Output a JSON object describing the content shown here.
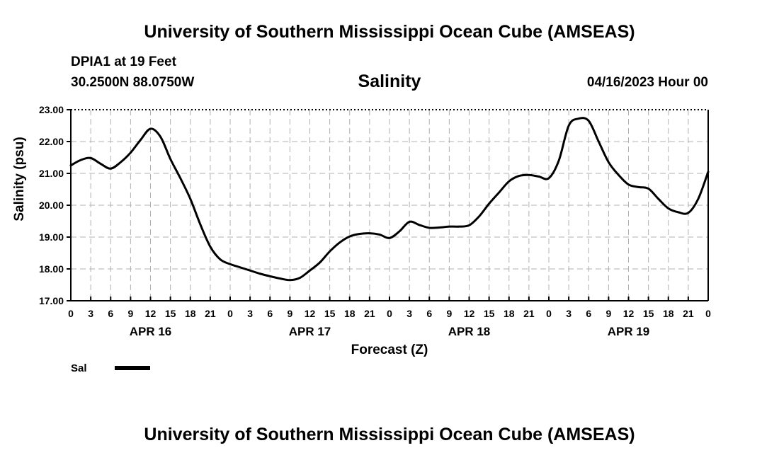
{
  "header": {
    "title": "University of Southern Mississippi Ocean Cube (AMSEAS)",
    "station": "DPIA1 at 19 Feet",
    "coordinates": "30.2500N  88.0750W",
    "datetime": "04/16/2023 Hour 00"
  },
  "footer": {
    "title": "University of Southern Mississippi Ocean Cube (AMSEAS)"
  },
  "colors": {
    "series": "#000000",
    "grid": "#b0b0b0",
    "axis": "#000000"
  },
  "chart_data": {
    "type": "line",
    "title": "Salinity",
    "xlabel": "Forecast (Z)",
    "ylabel": "Salinity (psu)",
    "xlim": [
      0,
      96
    ],
    "ylim": [
      17.0,
      23.0
    ],
    "yticks": [
      17.0,
      18.0,
      19.0,
      20.0,
      21.0,
      22.0,
      23.0
    ],
    "ytick_labels": [
      "17.00",
      "18.00",
      "19.00",
      "20.00",
      "21.00",
      "22.00",
      "23.00"
    ],
    "xticks": [
      0,
      3,
      6,
      9,
      12,
      15,
      18,
      21,
      24,
      27,
      30,
      33,
      36,
      39,
      42,
      45,
      48,
      51,
      54,
      57,
      60,
      63,
      66,
      69,
      72,
      75,
      78,
      81,
      84,
      87,
      90,
      93,
      96
    ],
    "xtick_labels": [
      "0",
      "3",
      "6",
      "9",
      "12",
      "15",
      "18",
      "21",
      "0",
      "3",
      "6",
      "9",
      "12",
      "15",
      "18",
      "21",
      "0",
      "3",
      "6",
      "9",
      "12",
      "15",
      "18",
      "21",
      "0",
      "3",
      "6",
      "9",
      "12",
      "15",
      "18",
      "21",
      "0"
    ],
    "day_labels": [
      {
        "hour": 12,
        "label": "APR 16"
      },
      {
        "hour": 36,
        "label": "APR 17"
      },
      {
        "hour": 60,
        "label": "APR 18"
      },
      {
        "hour": 84,
        "label": "APR 19"
      }
    ],
    "grid": true,
    "legend": {
      "label": "Sal",
      "placement": "bottom-left"
    },
    "series": [
      {
        "name": "Sal",
        "x": [
          0,
          1.5,
          3,
          4.5,
          6,
          7.5,
          9,
          10.5,
          12,
          13.5,
          15,
          16.5,
          18,
          19.5,
          21,
          22.5,
          24,
          25.5,
          27,
          28.5,
          30,
          31.5,
          33,
          34.5,
          36,
          37.5,
          39,
          40.5,
          42,
          43.5,
          45,
          46.5,
          48,
          49.5,
          51,
          52.5,
          54,
          55.5,
          57,
          58.5,
          60,
          61.5,
          63,
          64.5,
          66,
          67.5,
          69,
          70.5,
          72,
          73.5,
          75,
          76.5,
          78,
          79.5,
          81,
          82.5,
          84,
          85.5,
          87,
          88.5,
          90,
          91.5,
          93,
          94.5,
          96
        ],
        "values": [
          21.25,
          21.42,
          21.48,
          21.3,
          21.15,
          21.35,
          21.65,
          22.05,
          22.4,
          22.15,
          21.45,
          20.85,
          20.2,
          19.4,
          18.7,
          18.3,
          18.15,
          18.05,
          17.95,
          17.85,
          17.77,
          17.7,
          17.65,
          17.72,
          17.95,
          18.2,
          18.55,
          18.83,
          19.02,
          19.1,
          19.12,
          19.08,
          18.97,
          19.18,
          19.48,
          19.38,
          19.29,
          19.3,
          19.33,
          19.33,
          19.37,
          19.65,
          20.05,
          20.4,
          20.75,
          20.92,
          20.95,
          20.9,
          20.85,
          21.4,
          22.5,
          22.72,
          22.65,
          22.0,
          21.35,
          20.95,
          20.65,
          20.57,
          20.52,
          20.2,
          19.9,
          19.78,
          19.76,
          20.2,
          21.05
        ]
      }
    ]
  }
}
